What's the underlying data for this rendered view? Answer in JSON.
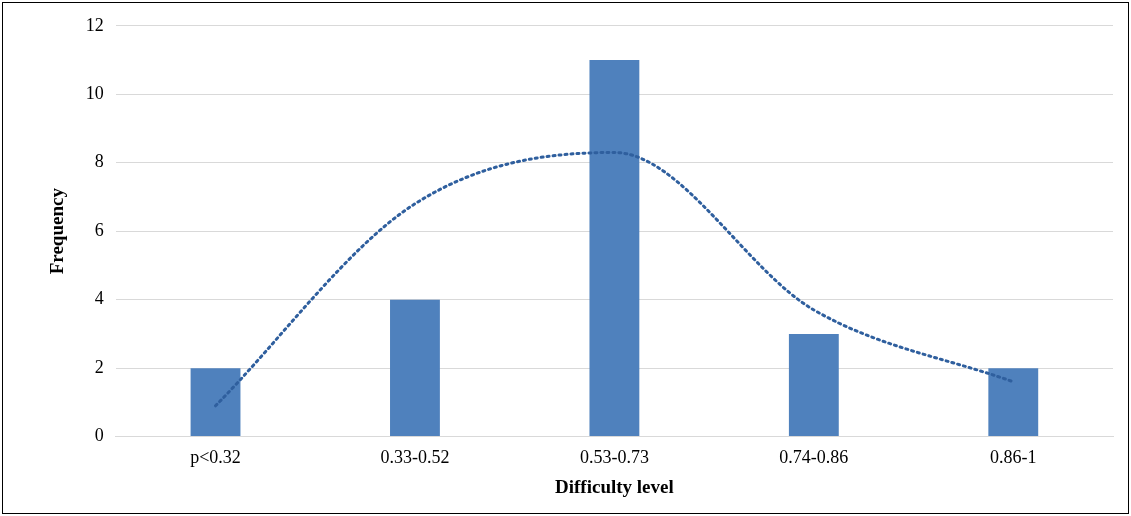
{
  "chart_data": {
    "type": "bar",
    "xlabel": "Difficulty level",
    "ylabel": "Frequency",
    "categories": [
      "p<0.32",
      "0.33-0.52",
      "0.53-0.73",
      "0.74-0.86",
      "0.86-1"
    ],
    "series": [
      {
        "color": "#4f81bd",
        "values": [
          2,
          4,
          11,
          3,
          2
        ]
      },
      {
        "type": "line",
        "color": "#2f5f9e",
        "line_style": "dotted",
        "marker": "none",
        "values": [
          0.9,
          6.8,
          8.3,
          3.7,
          1.6
        ]
      }
    ],
    "ylim": [
      0,
      12
    ],
    "yticks": [
      0,
      2,
      4,
      6,
      8,
      10,
      12
    ],
    "grid": "y",
    "legend": false
  }
}
